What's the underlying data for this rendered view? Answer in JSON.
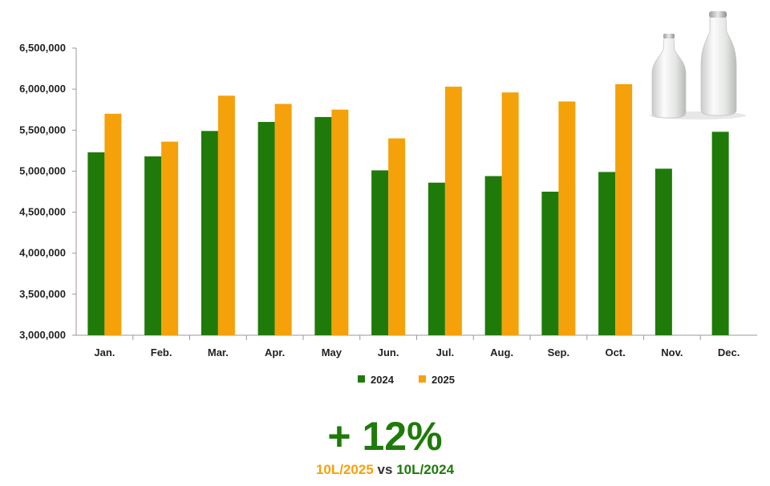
{
  "chart_data": {
    "type": "bar",
    "categories": [
      "Jan.",
      "Feb.",
      "Mar.",
      "Apr.",
      "May",
      "Jun.",
      "Jul.",
      "Aug.",
      "Sep.",
      "Oct.",
      "Nov.",
      "Dec."
    ],
    "series": [
      {
        "name": "2024",
        "color": "#1f7a0a",
        "values": [
          5230000,
          5180000,
          5490000,
          5600000,
          5660000,
          5010000,
          4860000,
          4940000,
          4750000,
          4990000,
          5030000,
          5480000
        ]
      },
      {
        "name": "2025",
        "color": "#f5a10a",
        "values": [
          5700000,
          5360000,
          5920000,
          5820000,
          5750000,
          5400000,
          6030000,
          5960000,
          5850000,
          6060000,
          null,
          null
        ]
      }
    ],
    "ylim": [
      3000000,
      6500000
    ],
    "yticks": [
      3000000,
      3500000,
      4000000,
      4500000,
      5000000,
      5500000,
      6000000,
      6500000
    ],
    "ytick_labels": [
      "3,000,000",
      "3,500,000",
      "4,000,000",
      "4,500,000",
      "5,000,000",
      "5,500,000",
      "6,000,000",
      "6,500,000"
    ],
    "legend_position": "bottom-center",
    "grid": false
  },
  "decoration": {
    "image": "milk-bottles"
  },
  "summary": {
    "headline": "+ 12%",
    "left": "10L/2025",
    "vs": "vs",
    "right": "10L/2024"
  }
}
